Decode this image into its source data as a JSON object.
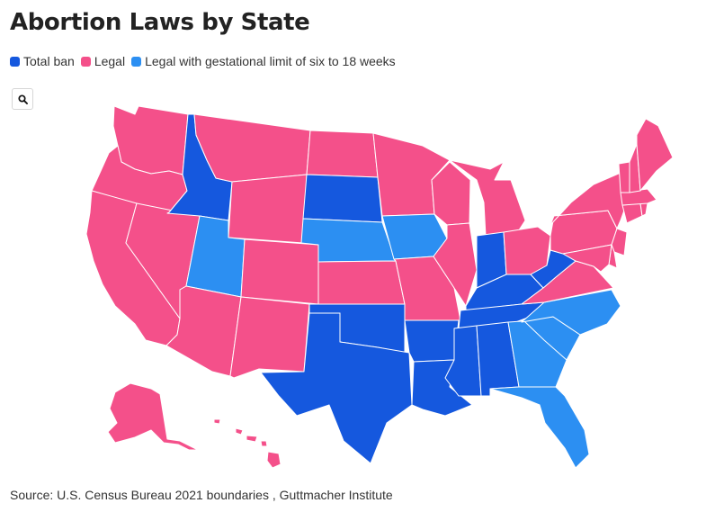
{
  "title": "Abortion Laws by State",
  "legend": [
    {
      "label": "Total ban",
      "color": "#1558de"
    },
    {
      "label": "Legal",
      "color": "#f4508a"
    },
    {
      "label": "Legal with gestational limit of six to 18 weeks",
      "color": "#2c8ff2"
    }
  ],
  "search_icon": "magnifier-icon",
  "colors": {
    "total_ban": "#1558de",
    "legal": "#f4508a",
    "gestational_limit": "#2c8ff2",
    "border": "#ffffff"
  },
  "states": {
    "WA": "legal",
    "OR": "legal",
    "CA": "legal",
    "NV": "legal",
    "ID": "total_ban",
    "MT": "legal",
    "WY": "legal",
    "UT": "gestational_limit",
    "AZ": "legal",
    "CO": "legal",
    "NM": "legal",
    "ND": "legal",
    "SD": "total_ban",
    "NE": "gestational_limit",
    "KS": "legal",
    "OK": "total_ban",
    "TX": "total_ban",
    "MN": "legal",
    "IA": "gestational_limit",
    "MO": "legal",
    "AR": "total_ban",
    "LA": "total_ban",
    "WI": "legal",
    "IL": "legal",
    "MI": "legal",
    "IN": "total_ban",
    "OH": "legal",
    "KY": "total_ban",
    "TN": "total_ban",
    "MS": "total_ban",
    "AL": "total_ban",
    "GA": "gestational_limit",
    "FL": "gestational_limit",
    "SC": "gestational_limit",
    "NC": "gestational_limit",
    "VA": "legal",
    "WV": "total_ban",
    "PA": "legal",
    "NY": "legal",
    "NJ": "legal",
    "DE": "legal",
    "MD": "legal",
    "CT": "legal",
    "RI": "legal",
    "MA": "legal",
    "VT": "legal",
    "NH": "legal",
    "ME": "legal",
    "AK": "legal",
    "HI": "legal"
  },
  "watermark": "",
  "source": "Source: U.S. Census Bureau 2021 boundaries , Guttmacher Institute"
}
